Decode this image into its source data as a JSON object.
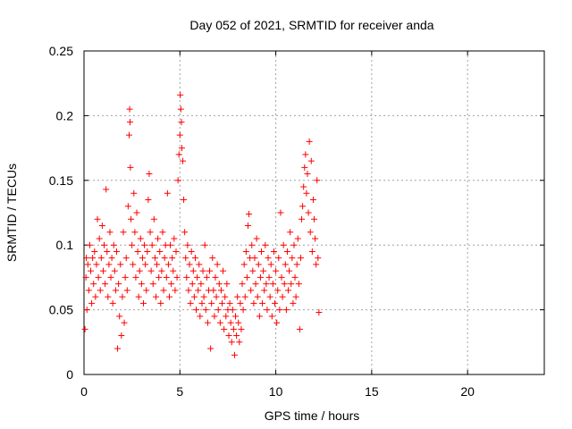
{
  "chart_data": {
    "type": "scatter",
    "title": "Day 052 of 2021, SRMTID for receiver anda",
    "xlabel": "GPS time / hours",
    "ylabel": "SRMTID / TECUs",
    "xlim": [
      0,
      24
    ],
    "ylim": [
      0,
      0.25
    ],
    "x_ticks": [
      "0",
      "5",
      "10",
      "15",
      "20"
    ],
    "y_ticks": [
      "0",
      "0.05",
      "0.1",
      "0.15",
      "0.2",
      "0.25"
    ],
    "grid": true,
    "marker": "+",
    "series": [
      {
        "color": "#ff0000",
        "points": [
          [
            0.05,
            0.035
          ],
          [
            0.1,
            0.075
          ],
          [
            0.12,
            0.09
          ],
          [
            0.15,
            0.05
          ],
          [
            0.2,
            0.085
          ],
          [
            0.25,
            0.065
          ],
          [
            0.3,
            0.1
          ],
          [
            0.35,
            0.08
          ],
          [
            0.4,
            0.055
          ],
          [
            0.45,
            0.09
          ],
          [
            0.5,
            0.07
          ],
          [
            0.55,
            0.095
          ],
          [
            0.6,
            0.06
          ],
          [
            0.65,
            0.085
          ],
          [
            0.7,
            0.12
          ],
          [
            0.75,
            0.075
          ],
          [
            0.8,
            0.105
          ],
          [
            0.85,
            0.065
          ],
          [
            0.9,
            0.09
          ],
          [
            0.95,
            0.115
          ],
          [
            1.0,
            0.08
          ],
          [
            1.05,
            0.1
          ],
          [
            1.1,
            0.07
          ],
          [
            1.15,
            0.143
          ],
          [
            1.2,
            0.095
          ],
          [
            1.25,
            0.06
          ],
          [
            1.3,
            0.085
          ],
          [
            1.35,
            0.11
          ],
          [
            1.4,
            0.075
          ],
          [
            1.45,
            0.09
          ],
          [
            1.5,
            0.055
          ],
          [
            1.55,
            0.1
          ],
          [
            1.6,
            0.08
          ],
          [
            1.65,
            0.065
          ],
          [
            1.7,
            0.095
          ],
          [
            1.75,
            0.02
          ],
          [
            1.8,
            0.07
          ],
          [
            1.85,
            0.045
          ],
          [
            1.9,
            0.085
          ],
          [
            1.95,
            0.03
          ],
          [
            2.0,
            0.06
          ],
          [
            2.05,
            0.11
          ],
          [
            2.1,
            0.04
          ],
          [
            2.15,
            0.075
          ],
          [
            2.2,
            0.09
          ],
          [
            2.25,
            0.065
          ],
          [
            2.3,
            0.13
          ],
          [
            2.35,
            0.185
          ],
          [
            2.38,
            0.205
          ],
          [
            2.4,
            0.195
          ],
          [
            2.42,
            0.16
          ],
          [
            2.45,
            0.12
          ],
          [
            2.5,
            0.1
          ],
          [
            2.55,
            0.085
          ],
          [
            2.6,
            0.14
          ],
          [
            2.65,
            0.11
          ],
          [
            2.7,
            0.075
          ],
          [
            2.75,
            0.125
          ],
          [
            2.8,
            0.095
          ],
          [
            2.85,
            0.06
          ],
          [
            2.9,
            0.08
          ],
          [
            2.95,
            0.105
          ],
          [
            3.0,
            0.07
          ],
          [
            3.05,
            0.09
          ],
          [
            3.1,
            0.055
          ],
          [
            3.15,
            0.1
          ],
          [
            3.2,
            0.085
          ],
          [
            3.25,
            0.065
          ],
          [
            3.3,
            0.095
          ],
          [
            3.35,
            0.135
          ],
          [
            3.4,
            0.155
          ],
          [
            3.45,
            0.11
          ],
          [
            3.5,
            0.08
          ],
          [
            3.55,
            0.1
          ],
          [
            3.6,
            0.07
          ],
          [
            3.65,
            0.12
          ],
          [
            3.7,
            0.09
          ],
          [
            3.75,
            0.06
          ],
          [
            3.8,
            0.085
          ],
          [
            3.85,
            0.105
          ],
          [
            3.9,
            0.075
          ],
          [
            3.95,
            0.095
          ],
          [
            4.0,
            0.055
          ],
          [
            4.05,
            0.08
          ],
          [
            4.1,
            0.11
          ],
          [
            4.15,
            0.065
          ],
          [
            4.2,
            0.09
          ],
          [
            4.25,
            0.1
          ],
          [
            4.3,
            0.075
          ],
          [
            4.35,
            0.14
          ],
          [
            4.4,
            0.085
          ],
          [
            4.45,
            0.06
          ],
          [
            4.5,
            0.1
          ],
          [
            4.55,
            0.07
          ],
          [
            4.6,
            0.09
          ],
          [
            4.65,
            0.08
          ],
          [
            4.7,
            0.105
          ],
          [
            4.75,
            0.065
          ],
          [
            4.8,
            0.095
          ],
          [
            4.85,
            0.075
          ],
          [
            4.9,
            0.15
          ],
          [
            4.95,
            0.17
          ],
          [
            5.0,
            0.185
          ],
          [
            5.02,
            0.216
          ],
          [
            5.05,
            0.205
          ],
          [
            5.08,
            0.195
          ],
          [
            5.1,
            0.175
          ],
          [
            5.15,
            0.165
          ],
          [
            5.2,
            0.135
          ],
          [
            5.25,
            0.11
          ],
          [
            5.3,
            0.09
          ],
          [
            5.35,
            0.075
          ],
          [
            5.4,
            0.1
          ],
          [
            5.45,
            0.065
          ],
          [
            5.5,
            0.085
          ],
          [
            5.55,
            0.055
          ],
          [
            5.6,
            0.095
          ],
          [
            5.65,
            0.07
          ],
          [
            5.7,
            0.08
          ],
          [
            5.75,
            0.06
          ],
          [
            5.8,
            0.09
          ],
          [
            5.85,
            0.05
          ],
          [
            5.9,
            0.075
          ],
          [
            5.95,
            0.065
          ],
          [
            6.0,
            0.085
          ],
          [
            6.05,
            0.045
          ],
          [
            6.1,
            0.07
          ],
          [
            6.15,
            0.055
          ],
          [
            6.2,
            0.08
          ],
          [
            6.25,
            0.06
          ],
          [
            6.3,
            0.1
          ],
          [
            6.35,
            0.05
          ],
          [
            6.4,
            0.075
          ],
          [
            6.45,
            0.04
          ],
          [
            6.5,
            0.065
          ],
          [
            6.55,
            0.08
          ],
          [
            6.6,
            0.02
          ],
          [
            6.65,
            0.055
          ],
          [
            6.7,
            0.09
          ],
          [
            6.75,
            0.065
          ],
          [
            6.8,
            0.045
          ],
          [
            6.85,
            0.075
          ],
          [
            6.9,
            0.06
          ],
          [
            6.95,
            0.085
          ],
          [
            7.0,
            0.05
          ],
          [
            7.05,
            0.07
          ],
          [
            7.1,
            0.04
          ],
          [
            7.15,
            0.065
          ],
          [
            7.2,
            0.055
          ],
          [
            7.25,
            0.08
          ],
          [
            7.3,
            0.035
          ],
          [
            7.35,
            0.06
          ],
          [
            7.4,
            0.045
          ],
          [
            7.45,
            0.07
          ],
          [
            7.5,
            0.05
          ],
          [
            7.55,
            0.03
          ],
          [
            7.6,
            0.055
          ],
          [
            7.65,
            0.04
          ],
          [
            7.7,
            0.025
          ],
          [
            7.75,
            0.05
          ],
          [
            7.8,
            0.035
          ],
          [
            7.85,
            0.015
          ],
          [
            7.9,
            0.045
          ],
          [
            7.95,
            0.03
          ],
          [
            8.0,
            0.06
          ],
          [
            8.05,
            0.04
          ],
          [
            8.1,
            0.025
          ],
          [
            8.15,
            0.055
          ],
          [
            8.2,
            0.035
          ],
          [
            8.25,
            0.07
          ],
          [
            8.3,
            0.05
          ],
          [
            8.35,
            0.085
          ],
          [
            8.4,
            0.06
          ],
          [
            8.45,
            0.095
          ],
          [
            8.5,
            0.075
          ],
          [
            8.55,
            0.115
          ],
          [
            8.6,
            0.124
          ],
          [
            8.65,
            0.09
          ],
          [
            8.7,
            0.065
          ],
          [
            8.75,
            0.1
          ],
          [
            8.8,
            0.08
          ],
          [
            8.85,
            0.055
          ],
          [
            8.9,
            0.09
          ],
          [
            8.95,
            0.07
          ],
          [
            9.0,
            0.105
          ],
          [
            9.05,
            0.06
          ],
          [
            9.1,
            0.085
          ],
          [
            9.15,
            0.045
          ],
          [
            9.2,
            0.075
          ],
          [
            9.25,
            0.095
          ],
          [
            9.3,
            0.055
          ],
          [
            9.35,
            0.08
          ],
          [
            9.4,
            0.065
          ],
          [
            9.45,
            0.1
          ],
          [
            9.5,
            0.07
          ],
          [
            9.55,
            0.05
          ],
          [
            9.6,
            0.09
          ],
          [
            9.65,
            0.075
          ],
          [
            9.7,
            0.06
          ],
          [
            9.75,
            0.085
          ],
          [
            9.8,
            0.045
          ],
          [
            9.85,
            0.07
          ],
          [
            9.9,
            0.095
          ],
          [
            9.95,
            0.055
          ],
          [
            10.0,
            0.08
          ],
          [
            10.05,
            0.04
          ],
          [
            10.1,
            0.065
          ],
          [
            10.15,
            0.09
          ],
          [
            10.2,
            0.05
          ],
          [
            10.25,
            0.125
          ],
          [
            10.3,
            0.075
          ],
          [
            10.35,
            0.06
          ],
          [
            10.4,
            0.1
          ],
          [
            10.45,
            0.07
          ],
          [
            10.5,
            0.085
          ],
          [
            10.55,
            0.05
          ],
          [
            10.6,
            0.095
          ],
          [
            10.65,
            0.065
          ],
          [
            10.7,
            0.08
          ],
          [
            10.75,
            0.11
          ],
          [
            10.8,
            0.07
          ],
          [
            10.85,
            0.09
          ],
          [
            10.9,
            0.055
          ],
          [
            10.95,
            0.1
          ],
          [
            11.0,
            0.075
          ],
          [
            11.05,
            0.06
          ],
          [
            11.1,
            0.085
          ],
          [
            11.15,
            0.105
          ],
          [
            11.2,
            0.07
          ],
          [
            11.25,
            0.035
          ],
          [
            11.3,
            0.09
          ],
          [
            11.35,
            0.12
          ],
          [
            11.4,
            0.13
          ],
          [
            11.45,
            0.145
          ],
          [
            11.5,
            0.16
          ],
          [
            11.55,
            0.17
          ],
          [
            11.6,
            0.14
          ],
          [
            11.65,
            0.155
          ],
          [
            11.7,
            0.125
          ],
          [
            11.75,
            0.18
          ],
          [
            11.8,
            0.11
          ],
          [
            11.85,
            0.165
          ],
          [
            11.9,
            0.095
          ],
          [
            11.95,
            0.135
          ],
          [
            12.0,
            0.12
          ],
          [
            12.05,
            0.105
          ],
          [
            12.1,
            0.085
          ],
          [
            12.15,
            0.15
          ],
          [
            12.2,
            0.09
          ],
          [
            12.25,
            0.048
          ]
        ]
      }
    ]
  }
}
